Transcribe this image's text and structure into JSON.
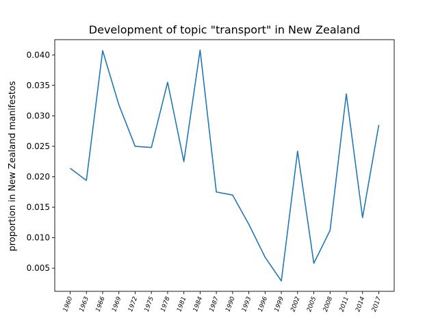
{
  "chart_data": {
    "type": "line",
    "title": "Development of topic \"transport\" in New Zealand",
    "xlabel": "",
    "ylabel": "proportion in New Zealand manifestos",
    "x": [
      "1960",
      "1963",
      "1966",
      "1969",
      "1972",
      "1975",
      "1978",
      "1981",
      "1984",
      "1987",
      "1990",
      "1993",
      "1996",
      "1999",
      "2002",
      "2005",
      "2008",
      "2011",
      "2014",
      "2017"
    ],
    "yticks": [
      "0.005",
      "0.010",
      "0.015",
      "0.020",
      "0.025",
      "0.030",
      "0.035",
      "0.040"
    ],
    "ylim": [
      0.0012,
      0.0425
    ],
    "grid": false,
    "series": [
      {
        "name": "",
        "color": "#1f77b4",
        "values": [
          0.0214,
          0.0194,
          0.0407,
          0.0318,
          0.025,
          0.0248,
          0.0355,
          0.0225,
          0.0408,
          0.0175,
          0.017,
          0.0122,
          0.0068,
          0.0029,
          0.0242,
          0.0058,
          0.0112,
          0.0336,
          0.0133,
          0.0285
        ]
      }
    ]
  }
}
